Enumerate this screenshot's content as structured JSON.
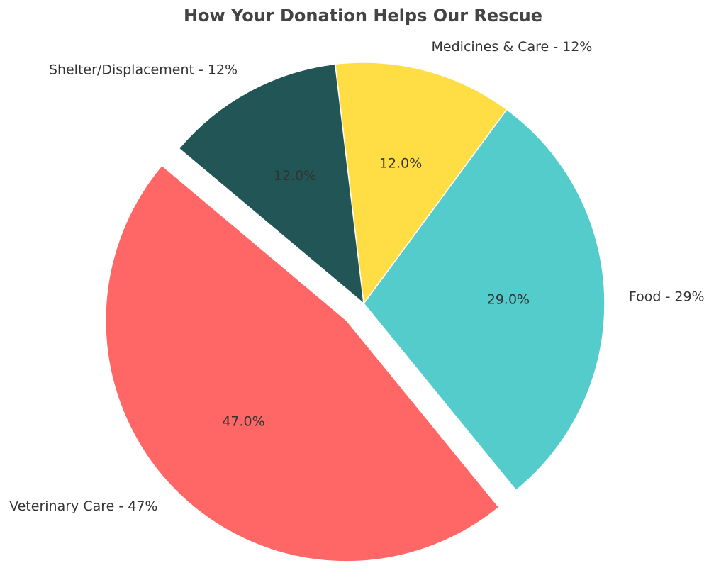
{
  "chart_data": {
    "type": "pie",
    "title": "How Your Donation Helps Our Rescue",
    "categories": [
      "Veterinary Care",
      "Food",
      "Medicines & Care",
      "Shelter/Displacement"
    ],
    "values": [
      47,
      29,
      12,
      12
    ],
    "labels": [
      "Veterinary Care - 47%",
      "Food - 29%",
      "Medicines & Care - 12%",
      "Shelter/Displacement - 12%"
    ],
    "percent_labels": [
      "47.0%",
      "29.0%",
      "12.0%",
      "12.0%"
    ],
    "colors": [
      "#ff6666",
      "#55cccc",
      "#ffdd44",
      "#225555"
    ],
    "exploded": [
      true,
      false,
      false,
      false
    ],
    "start_angle_deg": 140,
    "direction": "counterclockwise",
    "legend": "none"
  }
}
